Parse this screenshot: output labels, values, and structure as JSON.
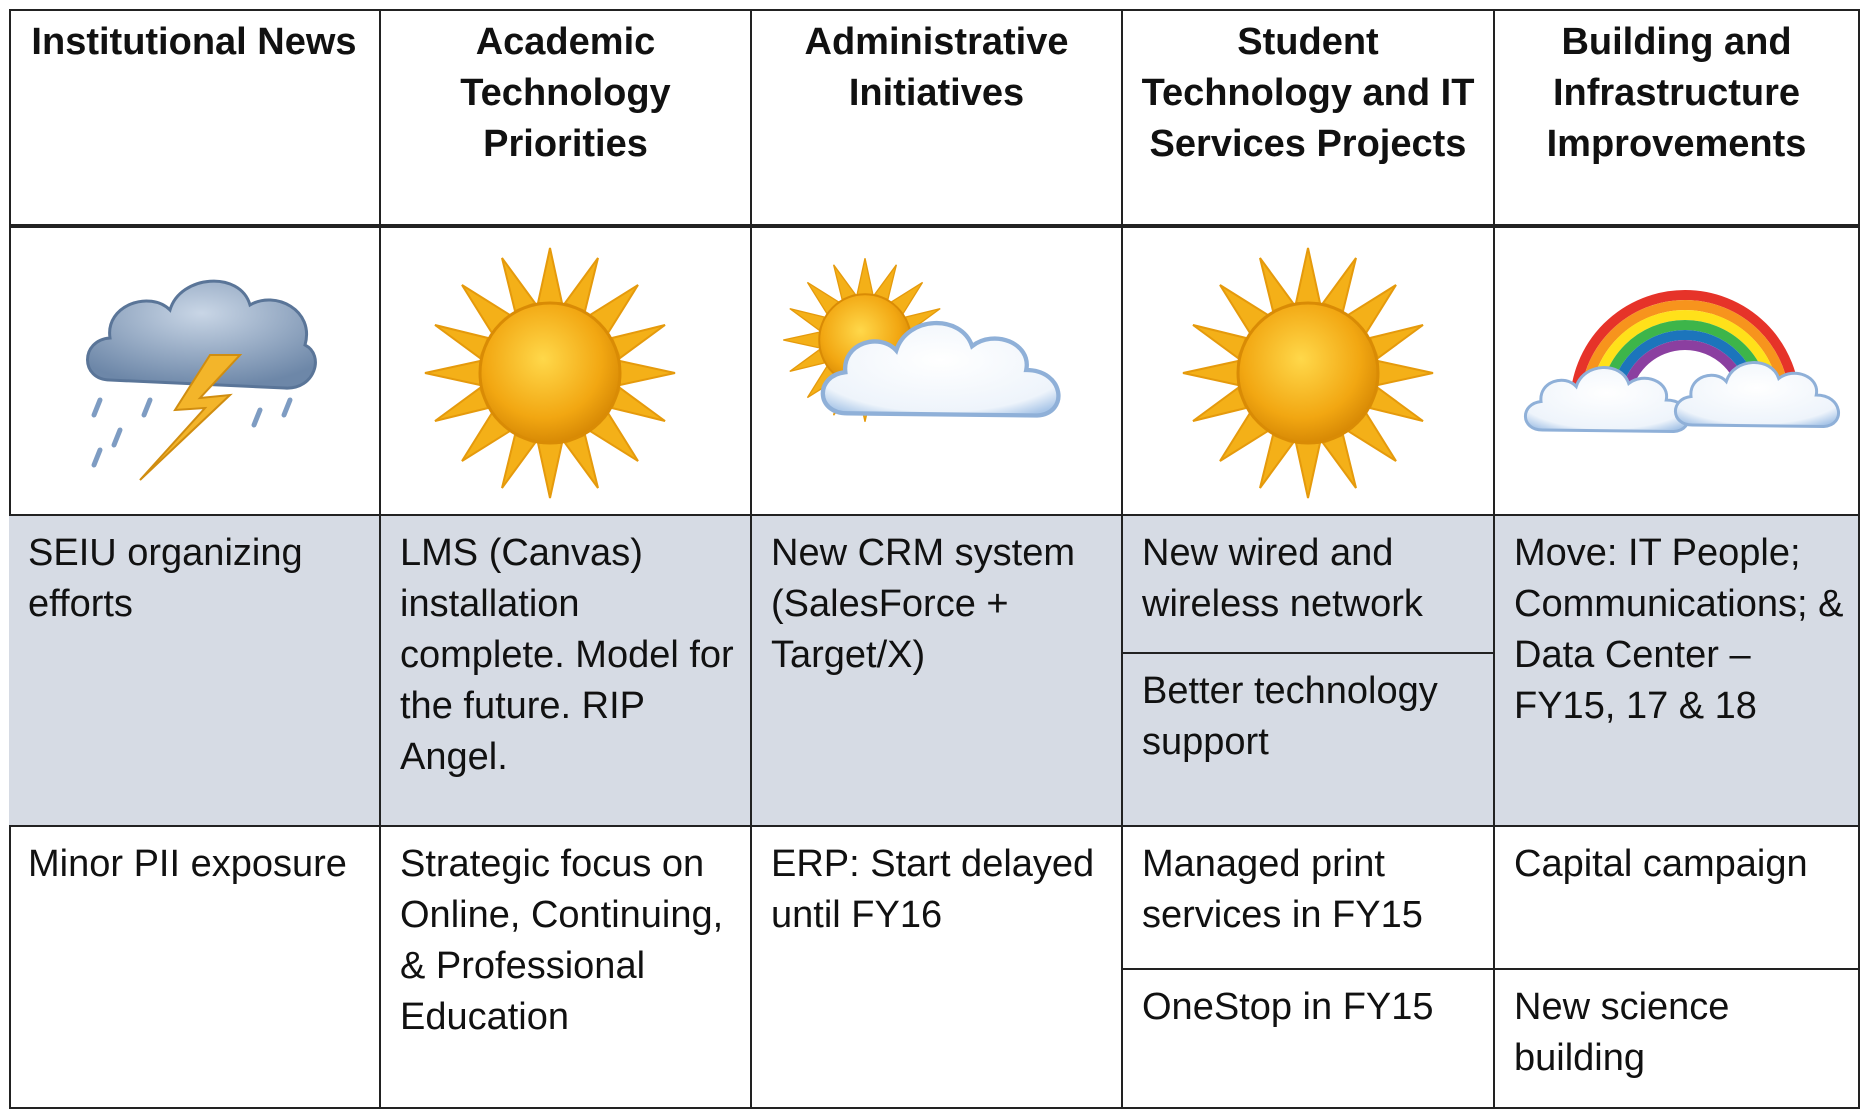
{
  "table": {
    "headers": [
      "Institutional News",
      "Academic Technology Priorities",
      "Administrative Initiatives",
      "Student Technology and IT Services Projects",
      "Building and Infrastructure Improvements"
    ],
    "rows": [
      [
        [
          "SEIU organizing efforts"
        ],
        [
          "LMS (Canvas) installation complete. Model for the future. RIP Angel."
        ],
        [
          "New CRM system (SalesForce + Target/X)"
        ],
        [
          "New wired and wireless network",
          "Better technology support"
        ],
        [
          "Move: IT People; Communications; & Data Center – FY15, 17 & 18"
        ]
      ],
      [
        [
          "Minor PII exposure"
        ],
        [
          "Strategic focus on Online, Continuing, & Professional Education"
        ],
        [
          "ERP: Start delayed until FY16"
        ],
        [
          "Managed print services in FY15",
          "OneStop in FY15"
        ],
        [
          "Capital campaign",
          "New science building"
        ]
      ]
    ]
  }
}
